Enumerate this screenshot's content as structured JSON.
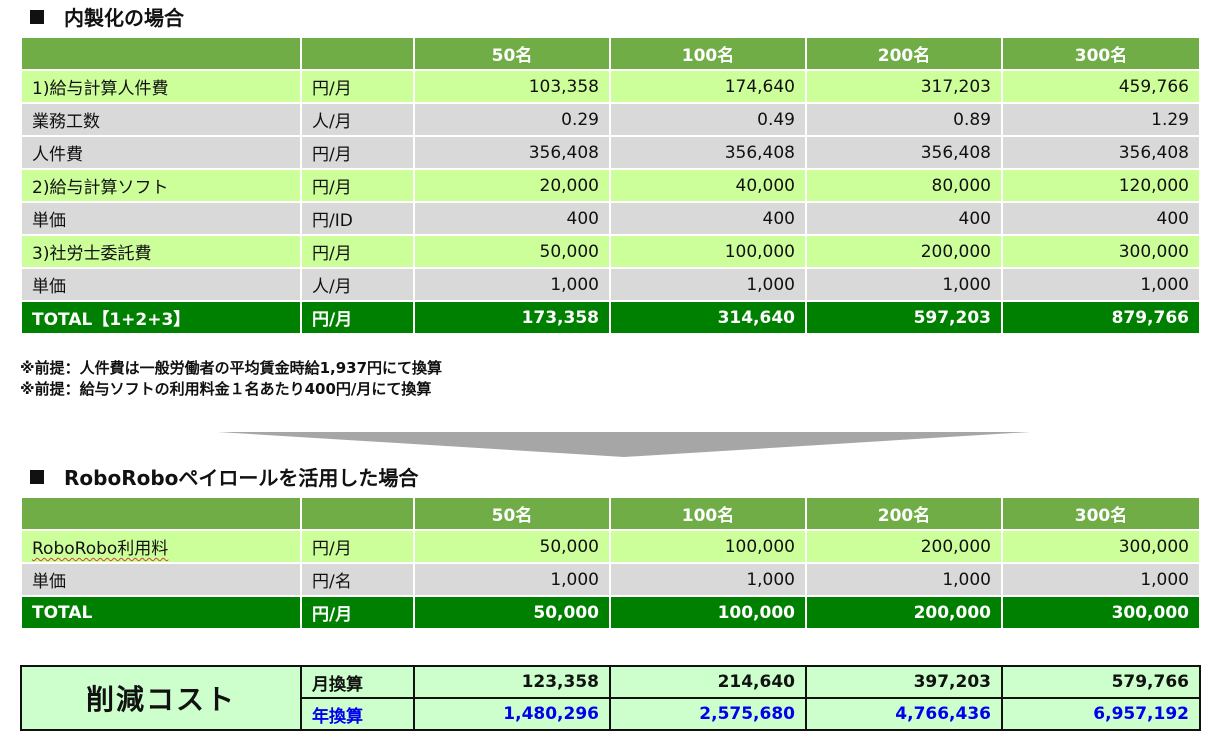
{
  "section1": {
    "title": "内製化の場合",
    "columns": [
      "",
      "",
      "50名",
      "100名",
      "200名",
      "300名"
    ],
    "rows": [
      {
        "label": "1)給与計算人件費",
        "unit": "円/月",
        "values": [
          "103,358",
          "174,640",
          "317,203",
          "459,766"
        ]
      },
      {
        "label": "業務工数",
        "unit": "人/月",
        "values": [
          "0.29",
          "0.49",
          "0.89",
          "1.29"
        ]
      },
      {
        "label": "人件費",
        "unit": "円/月",
        "values": [
          "356,408",
          "356,408",
          "356,408",
          "356,408"
        ]
      },
      {
        "label": "2)給与計算ソフト",
        "unit": "円/月",
        "values": [
          "20,000",
          "40,000",
          "80,000",
          "120,000"
        ]
      },
      {
        "label": "単価",
        "unit": "円/ID",
        "values": [
          "400",
          "400",
          "400",
          "400"
        ]
      },
      {
        "label": "3)社労士委託費",
        "unit": "円/月",
        "values": [
          "50,000",
          "100,000",
          "200,000",
          "300,000"
        ]
      },
      {
        "label": "単価",
        "unit": "人/月",
        "values": [
          "1,000",
          "1,000",
          "1,000",
          "1,000"
        ]
      },
      {
        "label": "TOTAL【1+2+3】",
        "unit": "円/月",
        "values": [
          "173,358",
          "314,640",
          "597,203",
          "879,766"
        ]
      }
    ],
    "notes": [
      "※前提：人件費は一般労働者の平均賃金時給1,937円にて換算",
      "※前提：給与ソフトの利用料金１名あたり400円/月にて換算"
    ]
  },
  "section2": {
    "title": "RoboRoboペイロールを活用した場合",
    "columns": [
      "",
      "",
      "50名",
      "100名",
      "200名",
      "300名"
    ],
    "rows": [
      {
        "label": "RoboRobo利用料",
        "unit": "円/月",
        "values": [
          "50,000",
          "100,000",
          "200,000",
          "300,000"
        ]
      },
      {
        "label": "単価",
        "unit": "円/名",
        "values": [
          "1,000",
          "1,000",
          "1,000",
          "1,000"
        ]
      },
      {
        "label": "TOTAL",
        "unit": "円/月",
        "values": [
          "50,000",
          "100,000",
          "200,000",
          "300,000"
        ]
      }
    ]
  },
  "savings": {
    "title": "削減コスト",
    "rows": [
      {
        "label": "月換算",
        "values": [
          "123,358",
          "214,640",
          "397,203",
          "579,766"
        ]
      },
      {
        "label": "年換算",
        "values": [
          "1,480,296",
          "2,575,680",
          "4,766,436",
          "6,957,192"
        ]
      }
    ]
  },
  "colors": {
    "header_green": "#70ad47",
    "total_green": "#008000",
    "lime_row": "#ccff99",
    "gray_row": "#d9d9d9",
    "savings_bg": "#ccffcc",
    "annual_blue": "#0000ee"
  }
}
